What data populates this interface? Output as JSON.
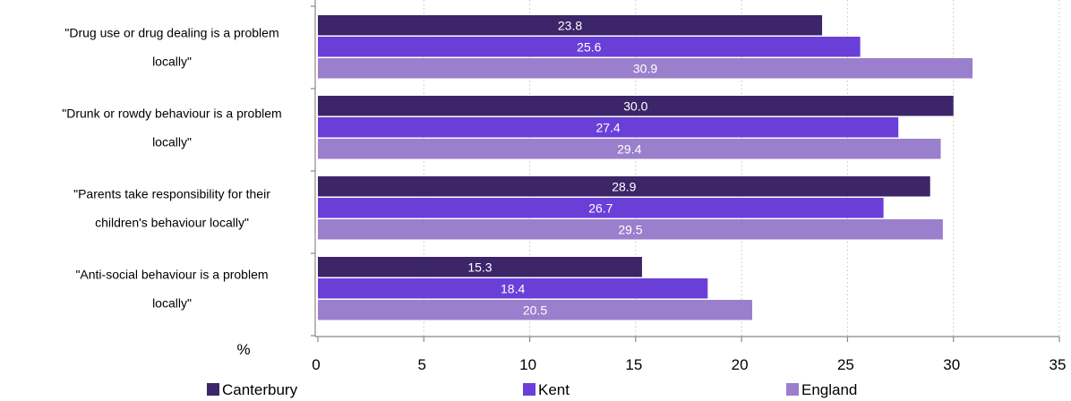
{
  "chart_data": {
    "type": "bar",
    "orientation": "horizontal",
    "categories": [
      "\"Drug use or drug dealing is a problem locally\"",
      "\"Drunk or rowdy behaviour is a problem locally\"",
      "\"Parents take responsibility for their children's behaviour locally\"",
      "\"Anti-social behaviour is a problem locally\""
    ],
    "category_lines": [
      [
        "\"Drug use or drug dealing is a problem",
        "locally\""
      ],
      [
        "\"Drunk or rowdy behaviour is a problem",
        "locally\""
      ],
      [
        "\"Parents take responsibility for their",
        "children's behaviour locally\""
      ],
      [
        "\"Anti-social behaviour is a problem",
        "locally\""
      ]
    ],
    "series": [
      {
        "name": "Canterbury",
        "color": "#3c2569",
        "values": [
          23.8,
          30.0,
          28.9,
          15.3
        ],
        "labels": [
          "23.8",
          "30.0",
          "28.9",
          "15.3"
        ]
      },
      {
        "name": "Kent",
        "color": "#6a3fd8",
        "values": [
          25.6,
          27.4,
          26.7,
          18.4
        ],
        "labels": [
          "25.6",
          "27.4",
          "26.7",
          "18.4"
        ]
      },
      {
        "name": "England",
        "color": "#9a7fcc",
        "values": [
          30.9,
          29.4,
          29.5,
          20.5
        ],
        "labels": [
          "30.9",
          "29.4",
          "29.5",
          "20.5"
        ]
      }
    ],
    "xlim": [
      0,
      35
    ],
    "xticks": [
      "0",
      "5",
      "10",
      "15",
      "20",
      "25",
      "30",
      "35"
    ],
    "xtick_values": [
      0,
      5,
      10,
      15,
      20,
      25,
      30,
      35
    ],
    "unit_label": "%",
    "grid": "vertical dotted",
    "legend_position": "bottom",
    "grid_color": "#c8c89a"
  }
}
